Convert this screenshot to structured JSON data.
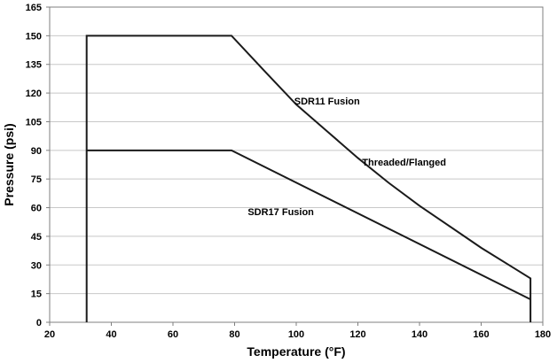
{
  "chart_data": {
    "type": "line",
    "xlabel": "Temperature (°F)",
    "ylabel": "Pressure (psi)",
    "xlim": [
      20,
      180
    ],
    "ylim": [
      0,
      165
    ],
    "x_ticks": [
      20,
      40,
      60,
      80,
      100,
      120,
      140,
      160,
      180
    ],
    "y_ticks": [
      0,
      15,
      30,
      45,
      60,
      75,
      90,
      105,
      120,
      135,
      150,
      165
    ],
    "grid": "horizontal",
    "colors": {
      "series": "#1a1a1a",
      "grid": "#c8c8c8",
      "border": "#7f7f7f"
    },
    "series": [
      {
        "x": [
          32,
          32,
          79,
          90,
          100,
          110,
          120,
          130,
          140,
          150,
          160,
          170,
          176,
          176
        ],
        "y": [
          0,
          150,
          150,
          131,
          114,
          100,
          86,
          73,
          61,
          50,
          39,
          29,
          23,
          0
        ]
      },
      {
        "x": [
          32,
          79,
          176
        ],
        "y": [
          90,
          90,
          12
        ]
      }
    ],
    "annotations": [
      {
        "text": "SDR11 Fusion",
        "x": 110,
        "y": 114
      },
      {
        "text": "Threaded/Flanged",
        "x": 135,
        "y": 82
      },
      {
        "text": "SDR17 Fusion",
        "x": 95,
        "y": 56
      }
    ]
  }
}
